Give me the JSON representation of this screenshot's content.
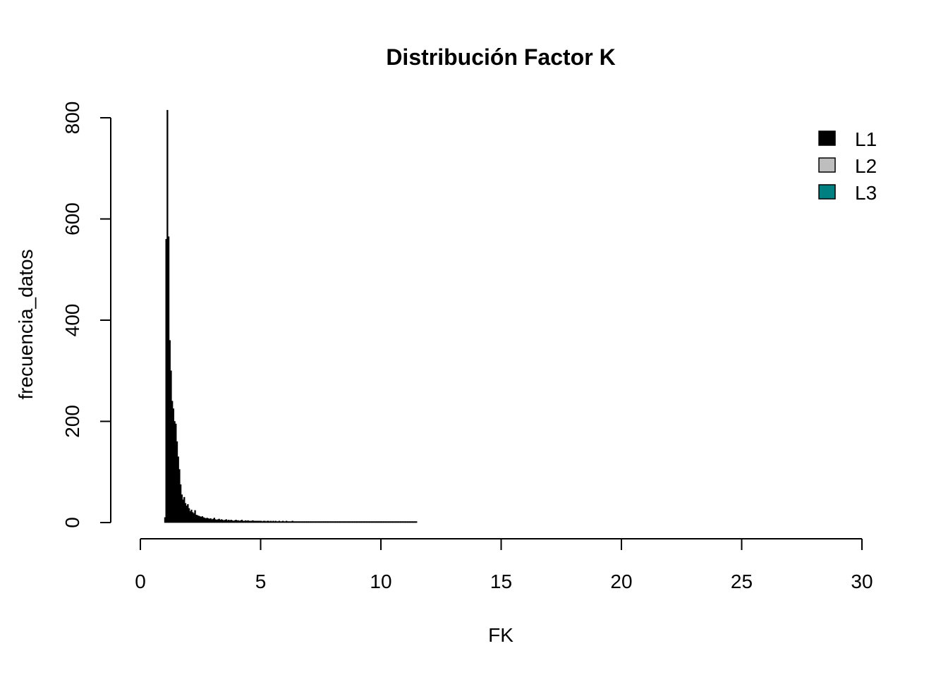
{
  "chart_data": {
    "type": "bar",
    "title": "Distribución Factor K",
    "xlabel": "FK",
    "ylabel": "frecuencia_datos",
    "xlim": [
      0,
      30
    ],
    "ylim": [
      0,
      800
    ],
    "x_ticks": [
      "0",
      "5",
      "10",
      "15",
      "20",
      "25",
      "30"
    ],
    "y_ticks": [
      "0",
      "200",
      "400",
      "600",
      "800"
    ],
    "bin_width": 0.05,
    "bins_start": 1.0,
    "series": [
      {
        "name": "L1",
        "color": "#000000",
        "values": [
          10,
          560,
          815,
          565,
          360,
          300,
          240,
          225,
          200,
          195,
          160,
          130,
          105,
          75,
          55,
          45,
          50,
          38,
          33,
          36,
          28,
          22,
          25,
          20,
          18,
          24,
          15,
          14,
          13,
          12,
          11,
          12,
          10,
          9,
          8,
          9,
          8,
          7,
          8,
          6,
          7,
          9,
          6,
          5,
          6,
          7,
          5,
          6,
          5,
          4,
          5,
          6,
          4,
          5,
          4,
          5,
          4,
          3,
          4,
          5,
          4,
          4,
          3,
          4,
          5,
          3,
          3,
          4,
          3,
          4,
          3,
          3,
          3,
          4,
          3,
          3,
          3,
          3,
          3,
          3,
          3,
          2,
          3,
          3,
          2,
          3,
          3,
          2,
          3,
          2,
          3,
          2,
          3,
          2,
          2,
          3,
          2,
          2,
          3,
          2,
          2,
          3,
          2,
          2,
          2,
          2,
          3,
          2,
          2,
          2,
          2,
          2,
          2,
          2,
          2,
          2,
          2,
          2,
          2,
          2,
          2,
          2,
          2,
          2,
          2,
          2,
          2,
          2,
          2,
          2,
          2,
          2,
          2,
          2,
          2,
          2,
          2,
          2,
          2,
          2,
          2,
          2,
          2,
          2,
          2,
          2,
          2,
          2,
          2,
          2,
          2,
          2,
          2,
          2,
          2,
          2,
          2,
          2,
          2,
          2,
          2,
          2,
          2,
          2,
          2,
          2,
          2,
          2,
          2,
          2,
          2,
          2,
          2,
          2,
          2,
          2,
          2,
          2,
          2,
          2,
          2,
          2,
          2,
          2,
          2,
          2,
          2,
          2,
          2,
          2,
          2,
          2,
          2,
          2,
          2,
          2,
          2,
          2,
          2,
          2,
          2,
          2,
          2,
          2,
          2,
          2,
          2,
          2,
          2,
          2
        ]
      },
      {
        "name": "L2",
        "color": "#bebebe",
        "values": []
      },
      {
        "name": "L3",
        "color": "#008080",
        "values": []
      }
    ],
    "legend_position": "top-right",
    "grid": false
  }
}
